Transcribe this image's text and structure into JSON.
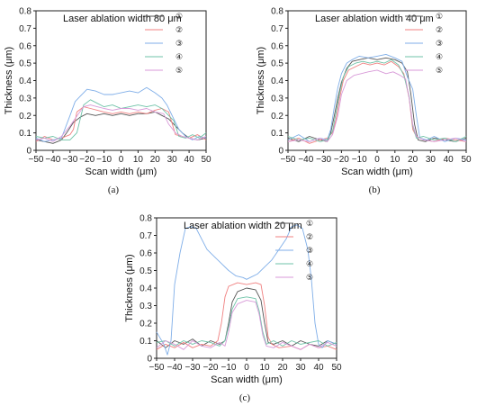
{
  "colors": [
    "#555555",
    "#f08080",
    "#7faee8",
    "#6fc3a8",
    "#d89ad8"
  ],
  "chart_data": [
    {
      "type": "line",
      "title": "Laser ablation width 80 μm",
      "caption": "(a)",
      "xlabel": "Scan width (μm)",
      "ylabel": "Thickness (μm)",
      "xlim": [
        -50,
        50
      ],
      "ylim": [
        0,
        0.8
      ],
      "xticks": [
        "−50",
        "−40",
        "−30",
        "−20",
        "−10",
        "0",
        "10",
        "20",
        "30",
        "40",
        "50"
      ],
      "yticks": [
        "0",
        "0.1",
        "0.2",
        "0.3",
        "0.4",
        "0.5",
        "0.6",
        "0.7",
        "0.8"
      ],
      "legend": "top-right",
      "series": [
        {
          "name": "①",
          "x": [
            -50,
            -45,
            -40,
            -35,
            -32,
            -28,
            -24,
            -20,
            -15,
            -10,
            -5,
            0,
            5,
            10,
            15,
            20,
            24,
            28,
            32,
            36,
            40,
            45,
            50
          ],
          "y": [
            0.06,
            0.05,
            0.04,
            0.06,
            0.1,
            0.16,
            0.19,
            0.21,
            0.2,
            0.21,
            0.2,
            0.21,
            0.2,
            0.21,
            0.21,
            0.22,
            0.2,
            0.18,
            0.14,
            0.1,
            0.07,
            0.06,
            0.07
          ]
        },
        {
          "name": "②",
          "x": [
            -50,
            -45,
            -40,
            -35,
            -30,
            -28,
            -26,
            -22,
            -18,
            -14,
            -10,
            -5,
            0,
            5,
            10,
            15,
            20,
            24,
            28,
            32,
            36,
            40,
            45,
            50
          ],
          "y": [
            0.05,
            0.08,
            0.06,
            0.07,
            0.09,
            0.12,
            0.22,
            0.25,
            0.24,
            0.23,
            0.22,
            0.21,
            0.22,
            0.21,
            0.22,
            0.21,
            0.23,
            0.24,
            0.22,
            0.09,
            0.08,
            0.07,
            0.09,
            0.06
          ]
        },
        {
          "name": "③",
          "x": [
            -50,
            -45,
            -40,
            -35,
            -30,
            -27,
            -24,
            -20,
            -15,
            -10,
            -5,
            0,
            5,
            10,
            15,
            20,
            24,
            27,
            30,
            34,
            38,
            42,
            46,
            50
          ],
          "y": [
            0.07,
            0.05,
            0.06,
            0.07,
            0.2,
            0.28,
            0.31,
            0.35,
            0.34,
            0.32,
            0.32,
            0.33,
            0.34,
            0.33,
            0.36,
            0.33,
            0.3,
            0.26,
            0.2,
            0.12,
            0.08,
            0.06,
            0.08,
            0.07
          ]
        },
        {
          "name": "④",
          "x": [
            -50,
            -45,
            -40,
            -35,
            -30,
            -26,
            -22,
            -18,
            -14,
            -10,
            -5,
            0,
            5,
            10,
            15,
            20,
            24,
            28,
            31,
            34,
            38,
            42,
            46,
            50
          ],
          "y": [
            0.08,
            0.07,
            0.08,
            0.06,
            0.06,
            0.1,
            0.26,
            0.29,
            0.27,
            0.25,
            0.26,
            0.24,
            0.25,
            0.26,
            0.25,
            0.26,
            0.24,
            0.2,
            0.17,
            0.08,
            0.07,
            0.09,
            0.07,
            0.1
          ]
        },
        {
          "name": "⑤",
          "x": [
            -50,
            -45,
            -40,
            -35,
            -30,
            -25,
            -22,
            -18,
            -14,
            -10,
            -5,
            0,
            5,
            10,
            15,
            20,
            25,
            28,
            32,
            36,
            40,
            45,
            50
          ],
          "y": [
            0.06,
            0.07,
            0.05,
            0.08,
            0.14,
            0.21,
            0.25,
            0.26,
            0.25,
            0.24,
            0.23,
            0.24,
            0.24,
            0.23,
            0.24,
            0.22,
            0.21,
            0.15,
            0.1,
            0.08,
            0.07,
            0.06,
            0.08
          ]
        }
      ]
    },
    {
      "type": "line",
      "title": "Laser ablation width 40 μm",
      "caption": "(b)",
      "xlabel": "Scan width (μm)",
      "ylabel": "Thickness (μm)",
      "xlim": [
        -50,
        50
      ],
      "ylim": [
        0,
        0.8
      ],
      "xticks": [
        "−50",
        "−40",
        "−30",
        "−20",
        "−10",
        "0",
        "10",
        "20",
        "30",
        "40",
        "50"
      ],
      "yticks": [
        "0",
        "0.1",
        "0.2",
        "0.3",
        "0.4",
        "0.5",
        "0.6",
        "0.7",
        "0.8"
      ],
      "legend": "top-right",
      "series": [
        {
          "name": "①",
          "x": [
            -50,
            -44,
            -38,
            -32,
            -28,
            -26,
            -24,
            -22,
            -20,
            -17,
            -14,
            -10,
            -5,
            0,
            5,
            10,
            14,
            17,
            19,
            21,
            23,
            27,
            32,
            38,
            44,
            50
          ],
          "y": [
            0.07,
            0.05,
            0.08,
            0.06,
            0.05,
            0.1,
            0.2,
            0.3,
            0.39,
            0.47,
            0.51,
            0.52,
            0.53,
            0.52,
            0.53,
            0.52,
            0.5,
            0.45,
            0.32,
            0.15,
            0.06,
            0.05,
            0.07,
            0.06,
            0.05,
            0.07
          ]
        },
        {
          "name": "②",
          "x": [
            -50,
            -44,
            -38,
            -32,
            -28,
            -25,
            -23,
            -21,
            -19,
            -16,
            -12,
            -8,
            -4,
            0,
            4,
            8,
            12,
            15,
            18,
            20,
            22,
            26,
            32,
            38,
            44,
            50
          ],
          "y": [
            0.05,
            0.07,
            0.04,
            0.06,
            0.07,
            0.1,
            0.18,
            0.3,
            0.4,
            0.46,
            0.48,
            0.5,
            0.49,
            0.5,
            0.49,
            0.51,
            0.48,
            0.44,
            0.3,
            0.12,
            0.08,
            0.06,
            0.05,
            0.07,
            0.06,
            0.05
          ]
        },
        {
          "name": "③",
          "x": [
            -50,
            -44,
            -38,
            -32,
            -28,
            -26,
            -24,
            -22,
            -20,
            -17,
            -14,
            -10,
            -5,
            0,
            5,
            10,
            14,
            17,
            20,
            22,
            24,
            28,
            32,
            38,
            44,
            50
          ],
          "y": [
            0.06,
            0.09,
            0.05,
            0.07,
            0.06,
            0.12,
            0.25,
            0.36,
            0.44,
            0.5,
            0.52,
            0.54,
            0.53,
            0.54,
            0.55,
            0.53,
            0.51,
            0.42,
            0.35,
            0.2,
            0.07,
            0.06,
            0.08,
            0.05,
            0.07,
            0.06
          ]
        },
        {
          "name": "④",
          "x": [
            -50,
            -44,
            -38,
            -32,
            -28,
            -25,
            -23,
            -21,
            -19,
            -16,
            -12,
            -8,
            -4,
            0,
            4,
            8,
            12,
            15,
            18,
            20,
            22,
            26,
            32,
            38,
            44,
            50
          ],
          "y": [
            0.08,
            0.06,
            0.07,
            0.05,
            0.06,
            0.11,
            0.22,
            0.33,
            0.42,
            0.48,
            0.5,
            0.51,
            0.5,
            0.51,
            0.5,
            0.52,
            0.49,
            0.43,
            0.31,
            0.14,
            0.07,
            0.08,
            0.06,
            0.07,
            0.05,
            0.08
          ]
        },
        {
          "name": "⑤",
          "x": [
            -50,
            -44,
            -38,
            -32,
            -28,
            -25,
            -22,
            -20,
            -17,
            -13,
            -9,
            -5,
            0,
            5,
            9,
            13,
            16,
            18,
            20,
            22,
            26,
            32,
            38,
            44,
            50
          ],
          "y": [
            0.05,
            0.06,
            0.05,
            0.07,
            0.05,
            0.09,
            0.2,
            0.32,
            0.4,
            0.43,
            0.44,
            0.45,
            0.46,
            0.44,
            0.45,
            0.43,
            0.41,
            0.3,
            0.15,
            0.08,
            0.06,
            0.05,
            0.06,
            0.07,
            0.05
          ]
        }
      ]
    },
    {
      "type": "line",
      "title": "Laser ablation width 20 μm",
      "caption": "(c)",
      "xlabel": "Scan width (μm)",
      "ylabel": "Thickness (μm)",
      "xlim": [
        -50,
        50
      ],
      "ylim": [
        0,
        0.8
      ],
      "xticks": [
        "−50",
        "−40",
        "−30",
        "−20",
        "−10",
        "0",
        "10",
        "20",
        "30",
        "40",
        "50"
      ],
      "yticks": [
        "0",
        "0.1",
        "0.2",
        "0.3",
        "0.4",
        "0.5",
        "0.6",
        "0.7",
        "0.8"
      ],
      "legend": "top-right",
      "series": [
        {
          "name": "①",
          "x": [
            -50,
            -45,
            -40,
            -35,
            -30,
            -25,
            -20,
            -15,
            -12,
            -10,
            -8,
            -5,
            0,
            5,
            8,
            10,
            12,
            15,
            20,
            25,
            30,
            35,
            40,
            45,
            50
          ],
          "y": [
            0.1,
            0.06,
            0.1,
            0.08,
            0.11,
            0.07,
            0.1,
            0.08,
            0.1,
            0.2,
            0.32,
            0.38,
            0.4,
            0.39,
            0.33,
            0.2,
            0.09,
            0.08,
            0.1,
            0.07,
            0.1,
            0.08,
            0.07,
            0.1,
            0.08
          ]
        },
        {
          "name": "②",
          "x": [
            -50,
            -45,
            -40,
            -35,
            -30,
            -25,
            -20,
            -16,
            -14,
            -12,
            -10,
            -5,
            0,
            5,
            8,
            10,
            12,
            14,
            18,
            25,
            30,
            35,
            40,
            45,
            50
          ],
          "y": [
            0.05,
            0.08,
            0.06,
            0.09,
            0.06,
            0.08,
            0.07,
            0.1,
            0.2,
            0.35,
            0.41,
            0.43,
            0.42,
            0.43,
            0.42,
            0.3,
            0.12,
            0.08,
            0.06,
            0.07,
            0.05,
            0.08,
            0.06,
            0.07,
            0.05
          ]
        },
        {
          "name": "③",
          "x": [
            -50,
            -46,
            -44,
            -42,
            -40,
            -37,
            -34,
            -31,
            -28,
            -25,
            -22,
            -18,
            -14,
            -10,
            -6,
            -2,
            0,
            2,
            6,
            10,
            14,
            18,
            22,
            25,
            28,
            31,
            34,
            36,
            38,
            40,
            42,
            45,
            50
          ],
          "y": [
            0.15,
            0.08,
            0.02,
            0.1,
            0.42,
            0.6,
            0.74,
            0.75,
            0.74,
            0.68,
            0.62,
            0.58,
            0.54,
            0.5,
            0.47,
            0.46,
            0.45,
            0.46,
            0.48,
            0.52,
            0.56,
            0.62,
            0.68,
            0.75,
            0.76,
            0.74,
            0.62,
            0.45,
            0.2,
            0.08,
            0.06,
            0.1,
            0.08
          ]
        },
        {
          "name": "④",
          "x": [
            -50,
            -45,
            -40,
            -35,
            -30,
            -25,
            -20,
            -15,
            -12,
            -10,
            -8,
            -5,
            0,
            5,
            7,
            9,
            11,
            15,
            20,
            25,
            30,
            35,
            40,
            45,
            50
          ],
          "y": [
            0.09,
            0.1,
            0.07,
            0.1,
            0.08,
            0.1,
            0.09,
            0.07,
            0.1,
            0.18,
            0.28,
            0.34,
            0.35,
            0.34,
            0.27,
            0.15,
            0.08,
            0.1,
            0.07,
            0.1,
            0.08,
            0.09,
            0.1,
            0.07,
            0.09
          ]
        },
        {
          "name": "⑤",
          "x": [
            -50,
            -45,
            -40,
            -35,
            -30,
            -25,
            -20,
            -15,
            -12,
            -10,
            -8,
            -5,
            0,
            5,
            7,
            9,
            11,
            15,
            20,
            25,
            30,
            35,
            40,
            45,
            50
          ],
          "y": [
            0.06,
            0.1,
            0.08,
            0.05,
            0.1,
            0.07,
            0.06,
            0.09,
            0.07,
            0.15,
            0.26,
            0.31,
            0.33,
            0.32,
            0.25,
            0.13,
            0.07,
            0.06,
            0.09,
            0.07,
            0.05,
            0.08,
            0.06,
            0.09,
            0.07
          ]
        }
      ]
    }
  ]
}
